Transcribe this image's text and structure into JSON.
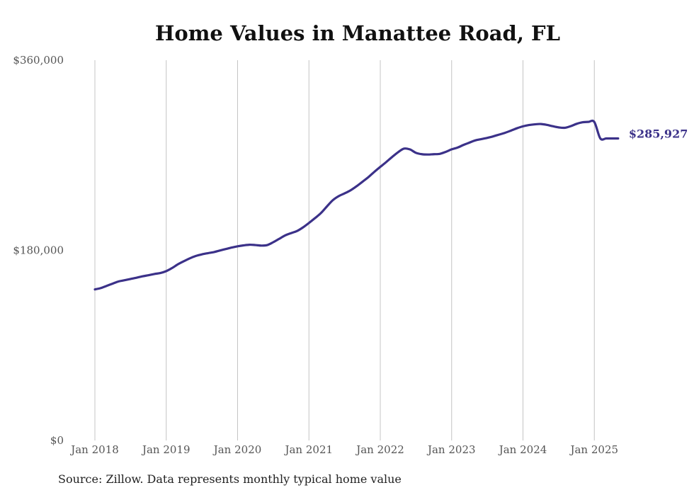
{
  "chart_data": {
    "type": "line",
    "title": "Home Values in Manattee Road, FL",
    "xlabel": "",
    "ylabel": "",
    "ylim": [
      0,
      360000
    ],
    "yticks": [
      {
        "value": 0,
        "label": "$0"
      },
      {
        "value": 180000,
        "label": "$180,000"
      },
      {
        "value": 360000,
        "label": "$360,000"
      }
    ],
    "xrange": [
      "2018-01",
      "2025-05"
    ],
    "xticks": [
      {
        "date": "2018-01",
        "label": "Jan 2018"
      },
      {
        "date": "2019-01",
        "label": "Jan 2019"
      },
      {
        "date": "2020-01",
        "label": "Jan 2020"
      },
      {
        "date": "2021-01",
        "label": "Jan 2021"
      },
      {
        "date": "2022-01",
        "label": "Jan 2022"
      },
      {
        "date": "2023-01",
        "label": "Jan 2023"
      },
      {
        "date": "2024-01",
        "label": "Jan 2024"
      },
      {
        "date": "2025-01",
        "label": "Jan 2025"
      }
    ],
    "grid": {
      "vertical": true,
      "horizontal": false
    },
    "line_color": "#3b3189",
    "end_label": "$285,927",
    "series": [
      {
        "x": [
          "2018-01",
          "2018-02",
          "2018-03",
          "2018-04",
          "2018-05",
          "2018-06",
          "2018-07",
          "2018-08",
          "2018-09",
          "2018-10",
          "2018-11",
          "2018-12",
          "2019-01",
          "2019-02",
          "2019-03",
          "2019-04",
          "2019-05",
          "2019-06",
          "2019-07",
          "2019-08",
          "2019-09",
          "2019-10",
          "2019-11",
          "2019-12",
          "2020-01",
          "2020-02",
          "2020-03",
          "2020-04",
          "2020-05",
          "2020-06",
          "2020-07",
          "2020-08",
          "2020-09",
          "2020-10",
          "2020-11",
          "2020-12",
          "2021-01",
          "2021-02",
          "2021-03",
          "2021-04",
          "2021-05",
          "2021-06",
          "2021-07",
          "2021-08",
          "2021-09",
          "2021-10",
          "2021-11",
          "2021-12",
          "2022-01",
          "2022-02",
          "2022-03",
          "2022-04",
          "2022-05",
          "2022-06",
          "2022-07",
          "2022-08",
          "2022-09",
          "2022-10",
          "2022-11",
          "2022-12",
          "2023-01",
          "2023-02",
          "2023-03",
          "2023-04",
          "2023-05",
          "2023-06",
          "2023-07",
          "2023-08",
          "2023-09",
          "2023-10",
          "2023-11",
          "2023-12",
          "2024-01",
          "2024-02",
          "2024-03",
          "2024-04",
          "2024-05",
          "2024-06",
          "2024-07",
          "2024-08",
          "2024-09",
          "2024-10",
          "2024-11",
          "2024-12",
          "2025-01",
          "2025-02",
          "2025-03",
          "2025-04",
          "2025-05"
        ],
        "values": [
          143000,
          144300,
          146400,
          148500,
          150600,
          151700,
          152900,
          154100,
          155400,
          156400,
          157600,
          158500,
          160300,
          163300,
          166900,
          169800,
          172500,
          174700,
          176200,
          177300,
          178300,
          179800,
          181200,
          182600,
          183800,
          184700,
          185300,
          185000,
          184500,
          185000,
          187700,
          190900,
          194100,
          196300,
          198300,
          201700,
          205900,
          210400,
          215200,
          221400,
          227400,
          231300,
          233900,
          236800,
          240600,
          244900,
          249300,
          254300,
          259000,
          263600,
          268400,
          272900,
          276300,
          275500,
          272300,
          271000,
          270700,
          271000,
          271300,
          273200,
          275600,
          277300,
          279800,
          282000,
          284100,
          285300,
          286500,
          287900,
          289600,
          291300,
          293400,
          295600,
          297400,
          298600,
          299300,
          299600,
          298800,
          297500,
          296400,
          296000,
          297500,
          299700,
          301200,
          301600,
          301500,
          286000,
          285927,
          285927,
          285927
        ]
      }
    ]
  },
  "source_note": "Source: Zillow. Data represents monthly typical home value"
}
